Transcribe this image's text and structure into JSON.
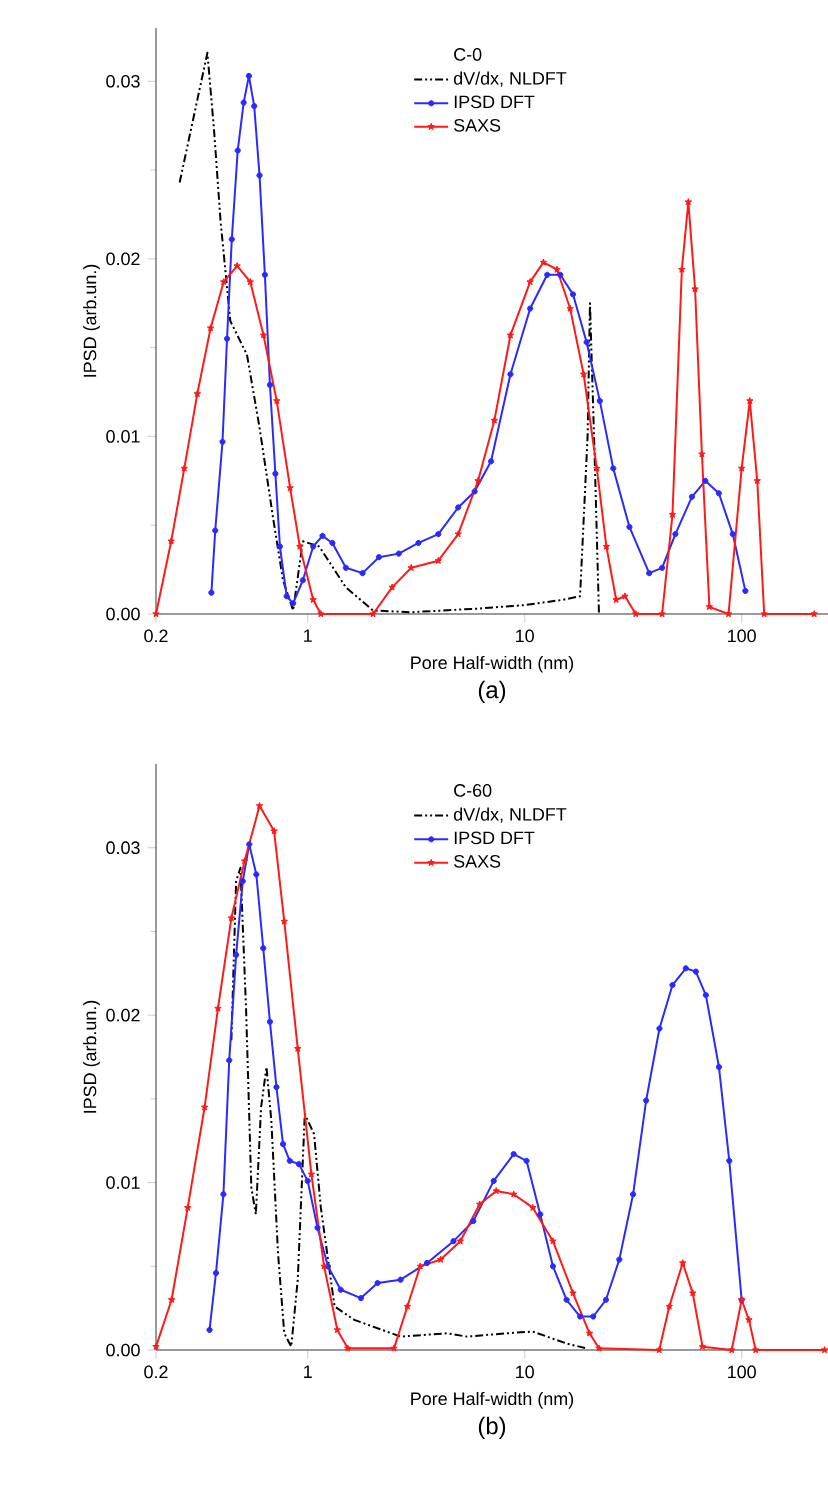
{
  "chart_data": [
    {
      "type": "line",
      "xlabel": "Pore  Half-width  (nm)",
      "ylabel": "IPSD  (arb.un.)",
      "legend_title": "C-0",
      "legend": "top",
      "log": "x",
      "annotations": [
        "(a)"
      ],
      "xlim": [
        0.2,
        250
      ],
      "xticks": [
        0.2,
        1,
        10,
        100
      ],
      "ylim": [
        0,
        0.033
      ],
      "yticks": [
        {
          "value": 0,
          "label": "0.00"
        },
        {
          "value": 0.01,
          "label": "0.01"
        },
        {
          "value": 0.02,
          "label": "0.02"
        },
        {
          "value": 0.03,
          "label": "0.03"
        }
      ],
      "series": [
        {
          "name": "dV/dx, NLDFT",
          "color": "#000000",
          "marker": "none",
          "line_style": "dashed",
          "x": [
            0.257,
            0.345,
            0.37,
            0.397,
            0.44,
            0.525,
            0.6,
            0.695,
            0.77,
            0.857,
            0.95,
            1.13,
            1.5,
            2.0,
            3,
            6,
            10,
            15,
            18,
            19.5,
            20,
            21,
            22
          ],
          "values": [
            0.0243,
            0.0316,
            0.0273,
            0.0221,
            0.0165,
            0.0146,
            0.0105,
            0.0053,
            0.0019,
            0.0002,
            0.0041,
            0.0038,
            0.0015,
            0.0002,
            0.0001,
            0.0003,
            0.0005,
            0.0008,
            0.001,
            0.01,
            0.0175,
            0.009,
            0.0
          ]
        },
        {
          "name": "IPSD DFT",
          "color": "#2a2aff",
          "marker": "circle",
          "line_style": "solid",
          "x": [
            0.36,
            0.375,
            0.405,
            0.425,
            0.447,
            0.476,
            0.507,
            0.536,
            0.567,
            0.6,
            0.635,
            0.67,
            0.71,
            0.745,
            0.8,
            0.857,
            0.95,
            1.06,
            1.17,
            1.3,
            1.5,
            1.79,
            2.13,
            2.63,
            3.24,
            4.0,
            4.94,
            5.88,
            7.0,
            8.6,
            10.6,
            12.7,
            14.6,
            16.7,
            19.3,
            22.2,
            25.6,
            30.4,
            37.5,
            43,
            49.5,
            59,
            68,
            78.5,
            91,
            104
          ],
          "values": [
            0.0012,
            0.0047,
            0.0097,
            0.0155,
            0.0211,
            0.0261,
            0.0288,
            0.0303,
            0.0286,
            0.0247,
            0.0191,
            0.0129,
            0.0079,
            0.0038,
            0.001,
            0.0006,
            0.0019,
            0.0038,
            0.0044,
            0.004,
            0.0026,
            0.0023,
            0.0032,
            0.0034,
            0.004,
            0.0045,
            0.006,
            0.0069,
            0.0086,
            0.0135,
            0.0172,
            0.0191,
            0.0191,
            0.018,
            0.0153,
            0.012,
            0.0082,
            0.0049,
            0.0023,
            0.0026,
            0.0045,
            0.0066,
            0.0075,
            0.0068,
            0.0045,
            0.0013
          ]
        },
        {
          "name": "SAXS",
          "color": "#ff1a1a",
          "marker": "star",
          "line_style": "solid",
          "x": [
            0.2,
            0.235,
            0.27,
            0.31,
            0.357,
            0.41,
            0.473,
            0.544,
            0.626,
            0.72,
            0.83,
            0.92,
            1.06,
            1.15,
            2.0,
            2.45,
            3.0,
            4.0,
            4.94,
            6.1,
            7.25,
            8.6,
            10.6,
            12.2,
            14.1,
            16.2,
            18.7,
            21.5,
            23.8,
            26.4,
            29,
            32.5,
            43,
            48,
            53,
            56.8,
            61,
            65.6,
            71,
            87,
            100,
            109,
            118,
            127,
            216
          ],
          "values": [
            0.0,
            0.0041,
            0.0082,
            0.0124,
            0.0161,
            0.0187,
            0.0196,
            0.0187,
            0.0157,
            0.012,
            0.0071,
            0.0038,
            0.0008,
            0.0,
            0.0,
            0.0015,
            0.0026,
            0.003,
            0.0045,
            0.0075,
            0.0109,
            0.0157,
            0.0187,
            0.0198,
            0.0194,
            0.0172,
            0.0135,
            0.0082,
            0.0038,
            0.0008,
            0.001,
            0.0,
            0.0,
            0.0056,
            0.0194,
            0.0232,
            0.0183,
            0.009,
            0.0004,
            0.0,
            0.0082,
            0.012,
            0.0075,
            0.0,
            0.0
          ]
        }
      ]
    },
    {
      "type": "line",
      "xlabel": "Pore  Half-width  (nm)",
      "ylabel": "IPSD  (arb.un.)",
      "legend_title": "C-60",
      "legend": "top",
      "log": "x",
      "annotations": [
        "(b)"
      ],
      "xlim": [
        0.2,
        250
      ],
      "xticks": [
        0.2,
        1,
        10,
        100
      ],
      "ylim": [
        0,
        0.035
      ],
      "yticks": [
        {
          "value": 0,
          "label": "0.00"
        },
        {
          "value": 0.01,
          "label": "0.01"
        },
        {
          "value": 0.02,
          "label": "0.02"
        },
        {
          "value": 0.03,
          "label": "0.03"
        }
      ],
      "series": [
        {
          "name": "dV/dx, NLDFT",
          "color": "#000000",
          "marker": "none",
          "line_style": "dashed",
          "x": [
            0.445,
            0.468,
            0.49,
            0.52,
            0.55,
            0.577,
            0.61,
            0.646,
            0.68,
            0.73,
            0.78,
            0.84,
            0.9,
            0.97,
            1.07,
            1.15,
            1.33,
            1.64,
            2.68,
            4.4,
            5.4,
            8.3,
            10.9,
            15.5,
            19.2
          ],
          "values": [
            0.0185,
            0.028,
            0.0288,
            0.0204,
            0.0097,
            0.0081,
            0.0145,
            0.0169,
            0.0137,
            0.0058,
            0.001,
            0.0002,
            0.0042,
            0.0141,
            0.0129,
            0.0085,
            0.0026,
            0.0018,
            0.0008,
            0.001,
            0.0008,
            0.001,
            0.0011,
            0.0004,
            0.0001
          ]
        },
        {
          "name": "IPSD DFT",
          "color": "#2a2aff",
          "marker": "circle",
          "line_style": "solid",
          "x": [
            0.353,
            0.378,
            0.409,
            0.435,
            0.468,
            0.502,
            0.538,
            0.58,
            0.624,
            0.67,
            0.718,
            0.77,
            0.827,
            0.912,
            1.0,
            1.11,
            1.24,
            1.42,
            1.76,
            2.1,
            2.68,
            3.55,
            4.7,
            5.8,
            7.2,
            8.9,
            10.2,
            11.8,
            13.5,
            15.6,
            18,
            20.7,
            23.7,
            27.3,
            31.6,
            36.3,
            41.8,
            48,
            55.3,
            61.5,
            68.4,
            78.6,
            87.7,
            100
          ],
          "values": [
            0.0012,
            0.0046,
            0.0093,
            0.0173,
            0.0236,
            0.028,
            0.0302,
            0.0284,
            0.024,
            0.0196,
            0.0157,
            0.0123,
            0.0113,
            0.0111,
            0.0101,
            0.0073,
            0.005,
            0.0036,
            0.0031,
            0.004,
            0.0042,
            0.0052,
            0.0065,
            0.0077,
            0.0101,
            0.0117,
            0.0113,
            0.0081,
            0.005,
            0.003,
            0.002,
            0.002,
            0.003,
            0.0054,
            0.0093,
            0.0149,
            0.0192,
            0.0218,
            0.0228,
            0.0226,
            0.0212,
            0.0169,
            0.0113,
            0.003
          ]
        },
        {
          "name": "SAXS",
          "color": "#ff1a1a",
          "marker": "star",
          "line_style": "solid",
          "x": [
            0.2,
            0.236,
            0.28,
            0.335,
            0.386,
            0.445,
            0.512,
            0.6,
            0.7,
            0.78,
            0.9,
            1.04,
            1.19,
            1.37,
            1.53,
            2.5,
            2.88,
            3.3,
            4.1,
            5.05,
            6.2,
            7.4,
            8.9,
            10.9,
            13.5,
            16.7,
            19.9,
            22,
            41.7,
            46.4,
            53.5,
            59.5,
            66,
            90,
            100,
            108,
            116,
            241
          ],
          "values": [
            0.0002,
            0.003,
            0.0085,
            0.0145,
            0.0204,
            0.0258,
            0.0292,
            0.0325,
            0.031,
            0.0256,
            0.018,
            0.0105,
            0.005,
            0.0012,
            0.0001,
            0.0001,
            0.0026,
            0.005,
            0.0054,
            0.0065,
            0.0087,
            0.0095,
            0.0093,
            0.0085,
            0.0065,
            0.0034,
            0.001,
            0.0001,
            0.0,
            0.0026,
            0.0052,
            0.0034,
            0.0002,
            0.0,
            0.003,
            0.0018,
            0.0,
            0.0
          ]
        }
      ]
    }
  ]
}
